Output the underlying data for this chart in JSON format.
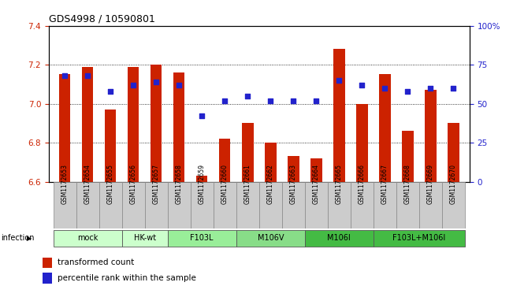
{
  "title": "GDS4998 / 10590801",
  "samples": [
    "GSM1172653",
    "GSM1172654",
    "GSM1172655",
    "GSM1172656",
    "GSM1172657",
    "GSM1172658",
    "GSM1172659",
    "GSM1172660",
    "GSM1172661",
    "GSM1172662",
    "GSM1172663",
    "GSM1172664",
    "GSM1172665",
    "GSM1172666",
    "GSM1172667",
    "GSM1172668",
    "GSM1172669",
    "GSM1172670"
  ],
  "bar_values": [
    7.15,
    7.19,
    6.97,
    7.19,
    7.2,
    7.16,
    6.63,
    6.82,
    6.9,
    6.8,
    6.73,
    6.72,
    7.28,
    7.0,
    7.15,
    6.86,
    7.07,
    6.9
  ],
  "dot_values": [
    68,
    68,
    58,
    62,
    64,
    62,
    42,
    52,
    55,
    52,
    52,
    52,
    65,
    62,
    60,
    58,
    60,
    60
  ],
  "ylim_left": [
    6.6,
    7.4
  ],
  "ylim_right": [
    0,
    100
  ],
  "yticks_left": [
    6.6,
    6.8,
    7.0,
    7.2,
    7.4
  ],
  "yticks_right": [
    0,
    25,
    50,
    75,
    100
  ],
  "ytick_labels_right": [
    "0",
    "25",
    "50",
    "75",
    "100%"
  ],
  "bar_color": "#cc2200",
  "dot_color": "#2222cc",
  "groups": [
    {
      "label": "mock",
      "start": 0,
      "end": 2,
      "color": "#ccffcc"
    },
    {
      "label": "HK-wt",
      "start": 3,
      "end": 4,
      "color": "#ccffcc"
    },
    {
      "label": "F103L",
      "start": 5,
      "end": 7,
      "color": "#99ee99"
    },
    {
      "label": "M106V",
      "start": 8,
      "end": 10,
      "color": "#88dd88"
    },
    {
      "label": "M106I",
      "start": 11,
      "end": 13,
      "color": "#44bb44"
    },
    {
      "label": "F103L+M106I",
      "start": 14,
      "end": 17,
      "color": "#44bb44"
    }
  ],
  "sample_label_bg": "#cccccc",
  "infection_label": "infection",
  "legend_bar_label": "transformed count",
  "legend_dot_label": "percentile rank within the sample",
  "grid_lines": [
    6.8,
    7.0,
    7.2
  ],
  "bar_width": 0.5
}
